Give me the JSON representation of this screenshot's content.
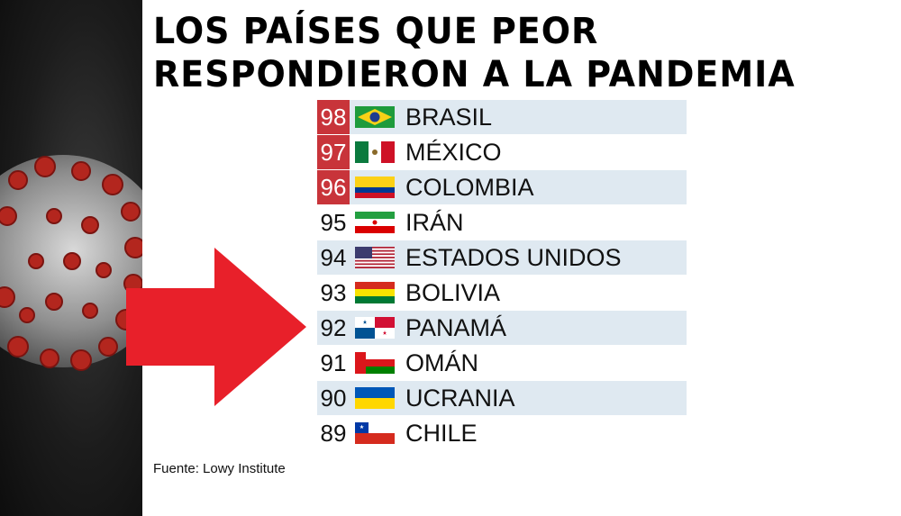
{
  "title": {
    "line1": "LOS PAÍSES QUE PEOR",
    "line2": "RESPONDIERON A LA PANDEMIA"
  },
  "ranking": [
    {
      "rank": "98",
      "country": "BRASIL",
      "highlight": true,
      "flag_icon": "brazil-flag-icon"
    },
    {
      "rank": "97",
      "country": "MÉXICO",
      "highlight": true,
      "flag_icon": "mexico-flag-icon"
    },
    {
      "rank": "96",
      "country": "COLOMBIA",
      "highlight": true,
      "flag_icon": "colombia-flag-icon"
    },
    {
      "rank": "95",
      "country": "IRÁN",
      "highlight": false,
      "flag_icon": "iran-flag-icon"
    },
    {
      "rank": "94",
      "country": "ESTADOS UNIDOS",
      "highlight": false,
      "flag_icon": "usa-flag-icon"
    },
    {
      "rank": "93",
      "country": "BOLIVIA",
      "highlight": false,
      "flag_icon": "bolivia-flag-icon"
    },
    {
      "rank": "92",
      "country": "PANAMÁ",
      "highlight": false,
      "flag_icon": "panama-flag-icon"
    },
    {
      "rank": "91",
      "country": "OMÁN",
      "highlight": false,
      "flag_icon": "oman-flag-icon"
    },
    {
      "rank": "90",
      "country": "UCRANIA",
      "highlight": false,
      "flag_icon": "ukraine-flag-icon"
    },
    {
      "rank": "89",
      "country": "CHILE",
      "highlight": false,
      "flag_icon": "chile-flag-icon"
    }
  ],
  "source": "Fuente: Lowy Institute",
  "colors": {
    "highlight_red": "#c8343a",
    "row_shade": "#dfe9f1",
    "arrow_red": "#e8202a"
  }
}
